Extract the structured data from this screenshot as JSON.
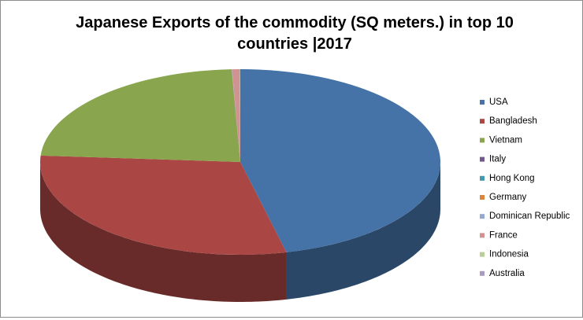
{
  "chart_data": {
    "type": "pie3d",
    "title": "Japanese Exports of the commodity (SQ meters.) in top 10 countries |2017",
    "categories": [
      "USA",
      "Bangladesh",
      "Vietnam",
      "Italy",
      "Hong Kong",
      "Germany",
      "Dominican Republic",
      "France",
      "Indonesia",
      "Australia"
    ],
    "values": [
      46.3,
      29.8,
      23.2,
      0.01,
      0.01,
      0.01,
      0.01,
      0.6,
      0.03,
      0.03
    ],
    "colors": [
      "#4572a7",
      "#aa4643",
      "#89a54e",
      "#71588f",
      "#4198af",
      "#db843d",
      "#93a9cf",
      "#d19392",
      "#b9cd96",
      "#a99bbd"
    ],
    "legend": "right"
  }
}
